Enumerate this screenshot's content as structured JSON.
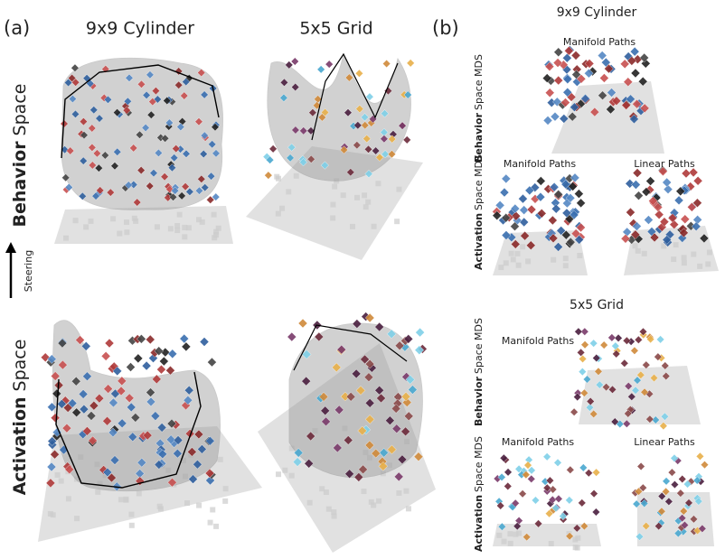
{
  "panel_a": {
    "label": "(a)",
    "columns": [
      "9x9 Cylinder",
      "5x5 Grid"
    ],
    "rows": [
      {
        "bold": "Behavior",
        "rest": "Space"
      },
      {
        "bold": "Activation",
        "rest": "Space"
      }
    ],
    "arrow_label": "Steering"
  },
  "panel_b": {
    "label": "(b)",
    "sections": [
      {
        "title": "9x9 Cylinder",
        "rows": [
          {
            "bold": "Behavior",
            "rest": "Space MDS",
            "plots": [
              "Manifold Paths"
            ]
          },
          {
            "bold": "Activation",
            "rest": "Space MDS",
            "plots": [
              "Manifold Paths",
              "Linear Paths"
            ]
          }
        ]
      },
      {
        "title": "5x5 Grid",
        "rows": [
          {
            "bold": "Behavior",
            "rest": "Space MDS",
            "plots": [
              "Manifold Paths"
            ]
          },
          {
            "bold": "Activation",
            "rest": "Space MDS",
            "plots": [
              "Manifold Paths",
              "Linear Paths"
            ]
          }
        ]
      }
    ]
  }
}
